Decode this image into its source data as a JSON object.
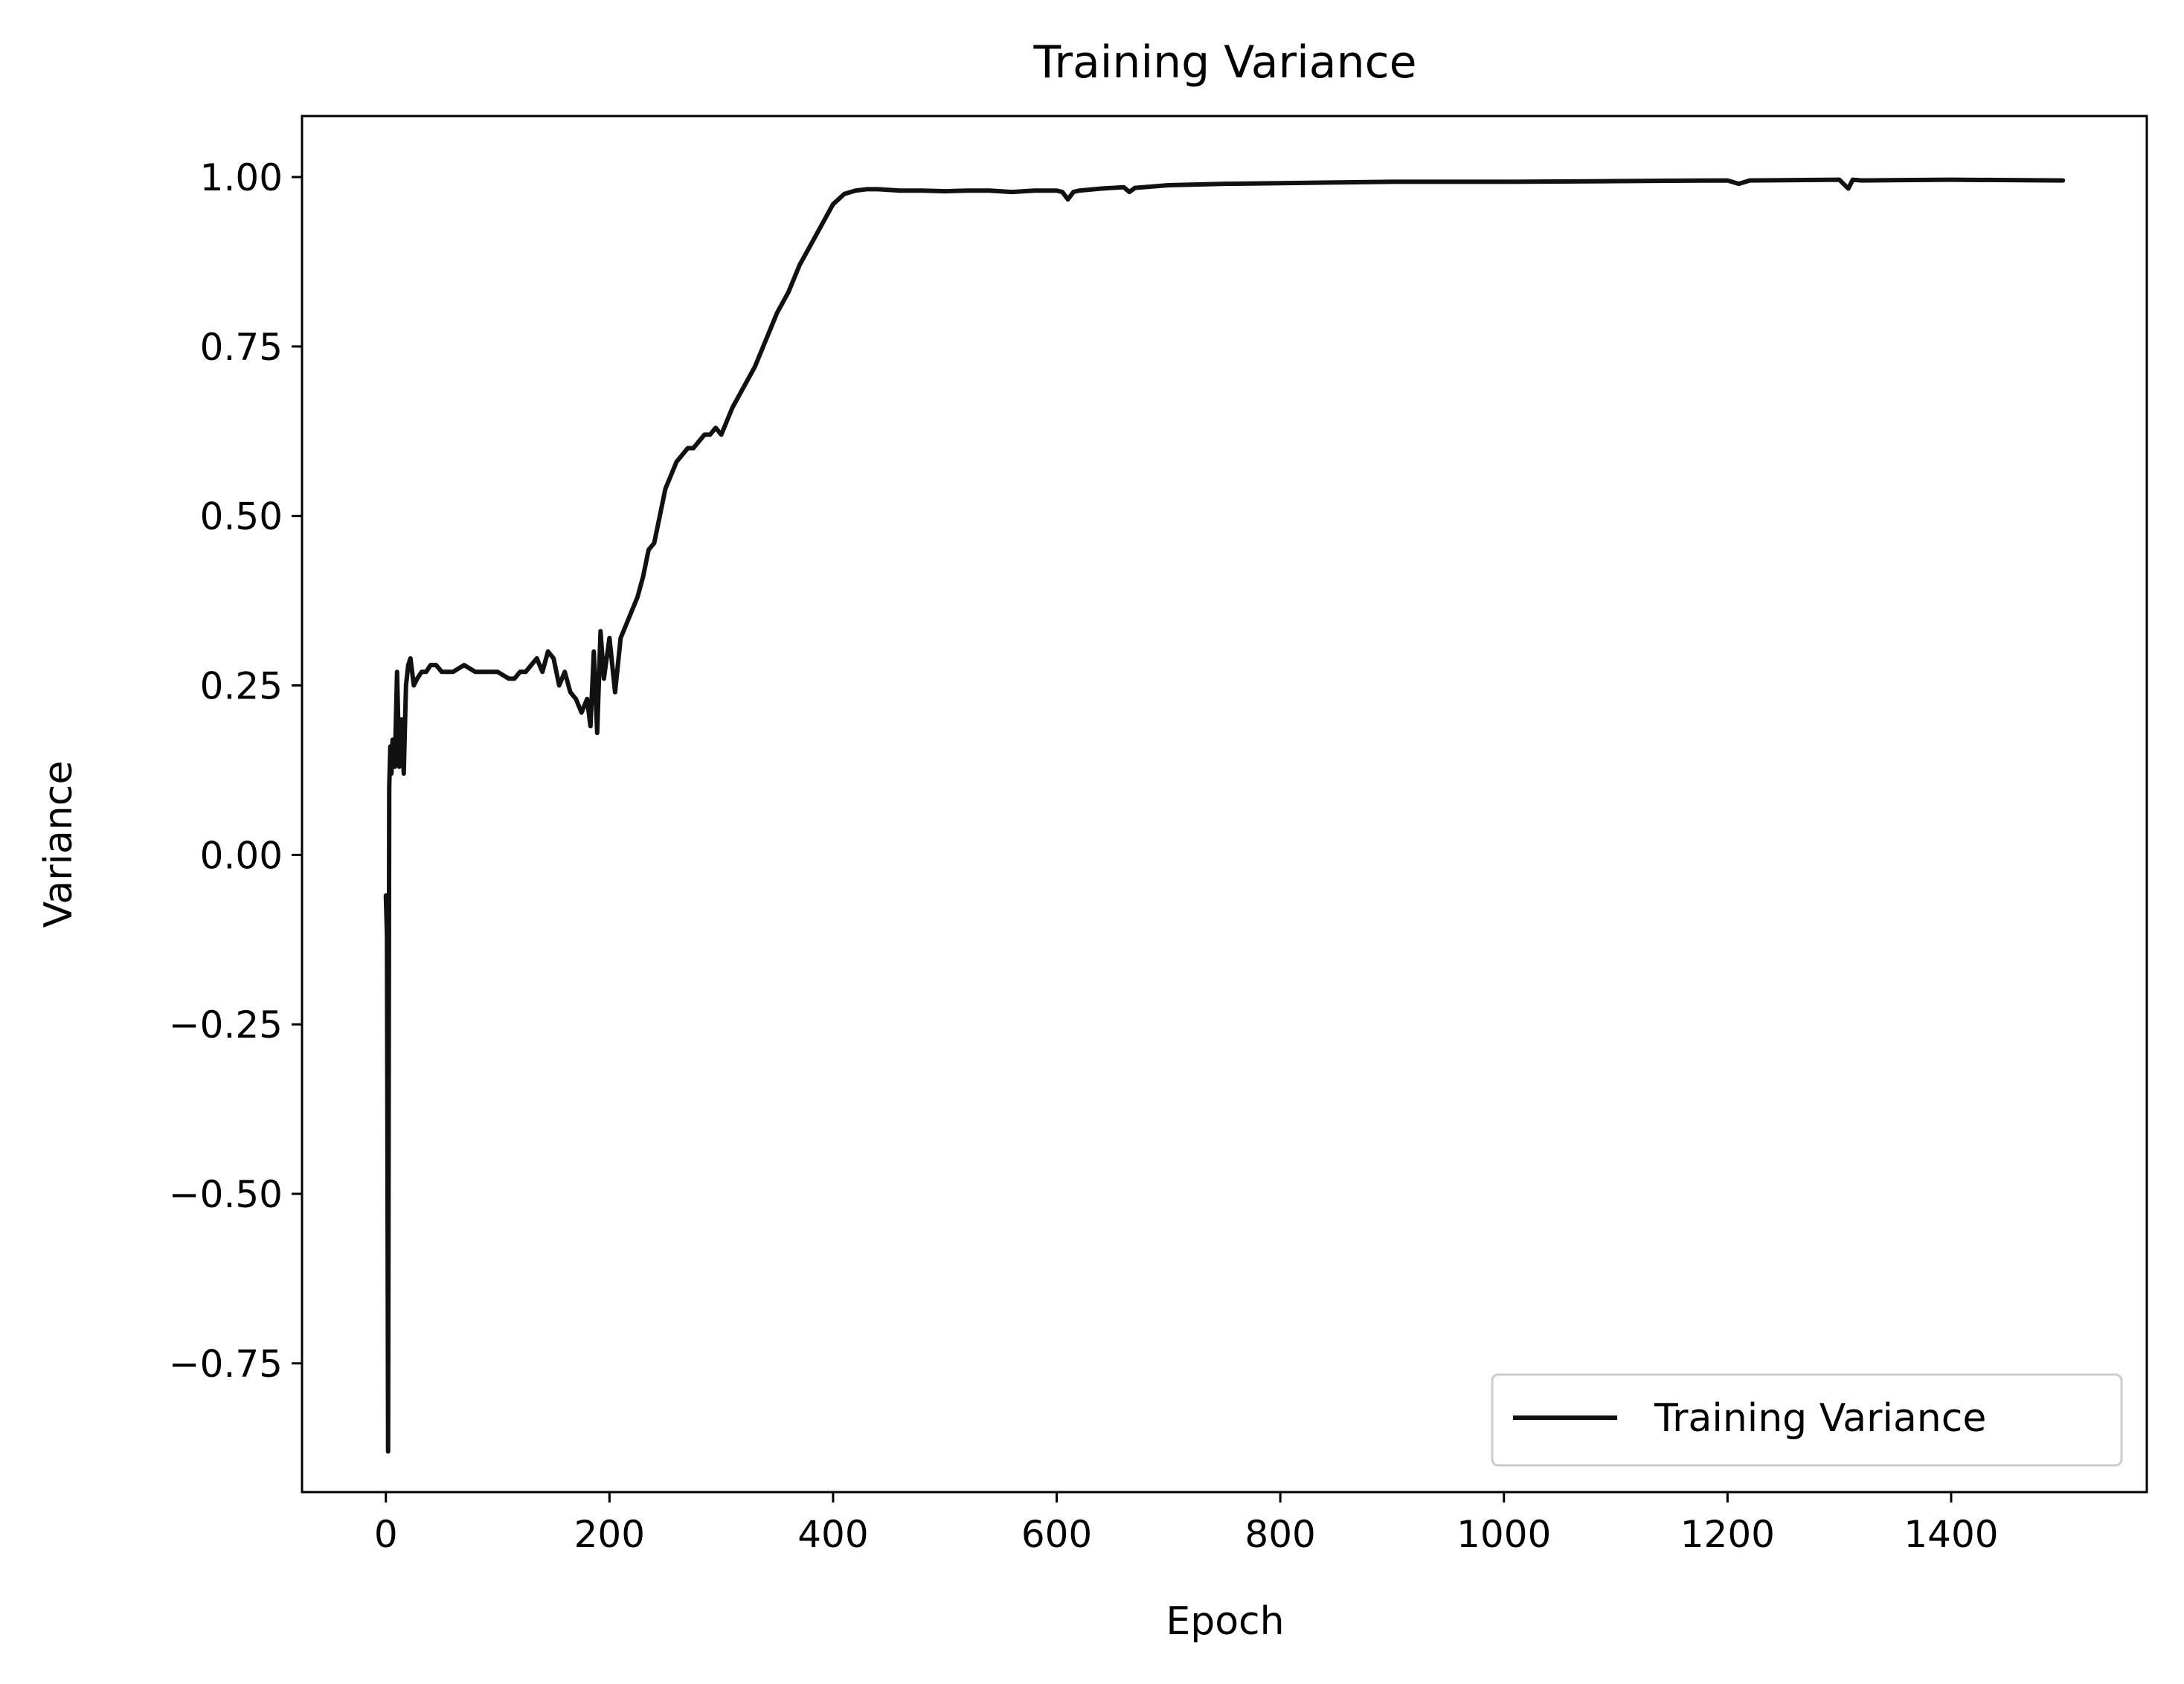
{
  "chart_data": {
    "type": "line",
    "title": "Training Variance",
    "xlabel": "Epoch",
    "ylabel": "Variance",
    "xlim": [
      -75,
      1575
    ],
    "ylim": [
      -0.94,
      1.09
    ],
    "xticks": [
      0,
      200,
      400,
      600,
      800,
      1000,
      1200,
      1400
    ],
    "xtick_labels": [
      "0",
      "200",
      "400",
      "600",
      "800",
      "1000",
      "1200",
      "1400"
    ],
    "yticks": [
      1.0,
      0.75,
      0.5,
      0.25,
      0.0,
      -0.25,
      -0.5,
      -0.75
    ],
    "ytick_labels": [
      "1.00",
      "0.75",
      "0.50",
      "0.25",
      "0.00",
      "−0.25",
      "−0.50",
      "−0.75"
    ],
    "grid": false,
    "legend_position": "lower-right",
    "series": [
      {
        "name": "Training Variance",
        "color": "#111111",
        "x": [
          0,
          1,
          2,
          3,
          4,
          5,
          6,
          8,
          10,
          12,
          14,
          16,
          18,
          20,
          22,
          25,
          28,
          32,
          36,
          40,
          45,
          50,
          55,
          60,
          70,
          80,
          90,
          100,
          110,
          115,
          120,
          125,
          130,
          135,
          140,
          145,
          150,
          155,
          160,
          165,
          170,
          175,
          180,
          183,
          186,
          189,
          192,
          195,
          200,
          205,
          210,
          215,
          220,
          225,
          230,
          235,
          240,
          245,
          250,
          255,
          260,
          265,
          270,
          275,
          280,
          285,
          290,
          295,
          300,
          305,
          310,
          320,
          330,
          340,
          350,
          360,
          370,
          380,
          390,
          400,
          410,
          420,
          430,
          440,
          460,
          480,
          500,
          520,
          540,
          560,
          580,
          600,
          605,
          610,
          615,
          620,
          640,
          660,
          665,
          670,
          700,
          750,
          800,
          900,
          1000,
          1100,
          1200,
          1210,
          1220,
          1300,
          1308,
          1312,
          1320,
          1400,
          1500
        ],
        "y": [
          -0.06,
          -0.12,
          -0.88,
          0.1,
          0.16,
          0.12,
          0.17,
          0.13,
          0.27,
          0.13,
          0.2,
          0.12,
          0.25,
          0.28,
          0.29,
          0.25,
          0.26,
          0.27,
          0.27,
          0.28,
          0.28,
          0.27,
          0.27,
          0.27,
          0.28,
          0.27,
          0.27,
          0.27,
          0.26,
          0.26,
          0.27,
          0.27,
          0.28,
          0.29,
          0.27,
          0.3,
          0.29,
          0.25,
          0.27,
          0.24,
          0.23,
          0.21,
          0.23,
          0.19,
          0.3,
          0.18,
          0.33,
          0.26,
          0.32,
          0.24,
          0.32,
          0.34,
          0.36,
          0.38,
          0.41,
          0.45,
          0.46,
          0.5,
          0.54,
          0.56,
          0.58,
          0.59,
          0.6,
          0.6,
          0.61,
          0.62,
          0.62,
          0.63,
          0.62,
          0.64,
          0.66,
          0.69,
          0.72,
          0.76,
          0.8,
          0.83,
          0.87,
          0.9,
          0.93,
          0.96,
          0.975,
          0.98,
          0.982,
          0.982,
          0.98,
          0.98,
          0.979,
          0.98,
          0.98,
          0.978,
          0.98,
          0.98,
          0.978,
          0.967,
          0.978,
          0.98,
          0.983,
          0.985,
          0.978,
          0.984,
          0.988,
          0.99,
          0.991,
          0.993,
          0.993,
          0.994,
          0.995,
          0.99,
          0.995,
          0.996,
          0.983,
          0.996,
          0.995,
          0.996,
          0.995
        ]
      }
    ]
  }
}
